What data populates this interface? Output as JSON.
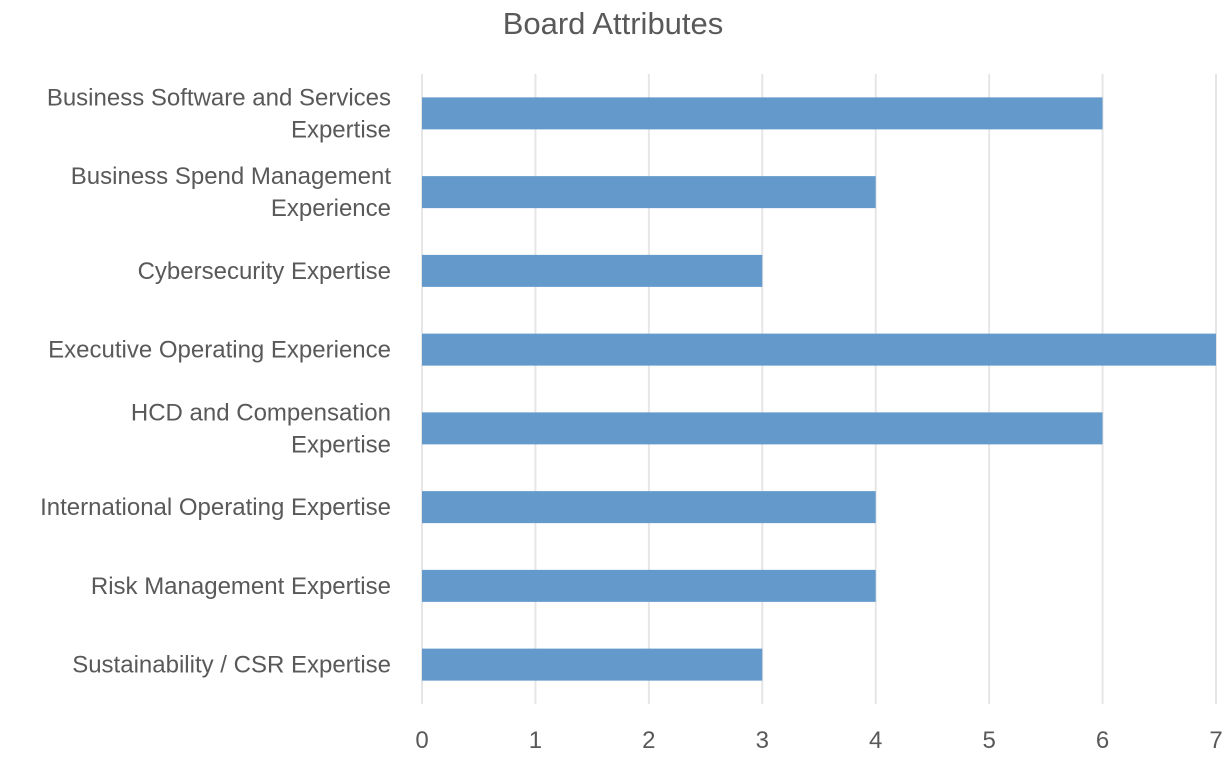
{
  "chart_data": {
    "type": "bar",
    "orientation": "horizontal",
    "title": "Board Attributes",
    "xlabel": "",
    "ylabel": "",
    "categories": [
      "Business Software and Services Expertise",
      "Business Spend Management Experience",
      "Cybersecurity Expertise",
      "Executive Operating Experience",
      "HCD and Compensation Expertise",
      "International Operating Expertise",
      "Risk Management Expertise",
      "Sustainability / CSR Expertise"
    ],
    "category_label_lines": [
      [
        "Business Software and Services",
        "Expertise"
      ],
      [
        "Business Spend Management",
        "Experience"
      ],
      [
        "Cybersecurity Expertise"
      ],
      [
        "Executive Operating Experience"
      ],
      [
        "HCD and Compensation",
        "Expertise"
      ],
      [
        "International Operating Expertise"
      ],
      [
        "Risk Management Expertise"
      ],
      [
        "Sustainability / CSR Expertise"
      ]
    ],
    "values": [
      6,
      4,
      3,
      7,
      6,
      4,
      4,
      3
    ],
    "xlim": [
      0,
      7
    ],
    "xticks": [
      "0",
      "1",
      "2",
      "3",
      "4",
      "5",
      "6",
      "7"
    ],
    "grid": true,
    "legend": "none",
    "bar_color": "#6399cb",
    "grid_color": "#e6e6e6",
    "text_color": "#595959"
  }
}
